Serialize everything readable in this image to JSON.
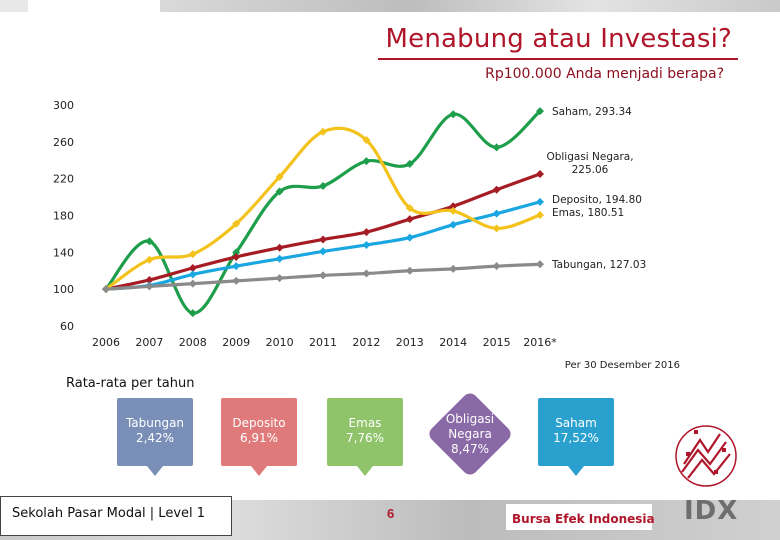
{
  "header": {
    "title": "Menabung atau Investasi?",
    "subtitle": "Rp100.000 Anda menjadi berapa?"
  },
  "footnote": "Per 30 Desember 2016",
  "averages": {
    "title": "Rata-rata per tahun",
    "items": [
      {
        "name": "Tabungan",
        "value": "2,42%",
        "color": "#7a8fb8",
        "shape": "rect"
      },
      {
        "name": "Deposito",
        "value": "6,91%",
        "color": "#e07a7a",
        "shape": "rect"
      },
      {
        "name": "Emas",
        "value": "7,76%",
        "color": "#8fc46b",
        "shape": "rect"
      },
      {
        "name": "Obligasi Negara",
        "value": "8,47%",
        "color": "#8a6aa6",
        "shape": "diamond"
      },
      {
        "name": "Saham",
        "value": "17,52%",
        "color": "#2aa0cf",
        "shape": "rect"
      }
    ]
  },
  "footer": {
    "left": "Sekolah Pasar Modal | Level 1",
    "page": "6",
    "brand": "Bursa Efek Indonesia",
    "logo_text": "IDX"
  },
  "chart_data": {
    "type": "line",
    "title": "",
    "xlabel": "",
    "ylabel": "",
    "categories": [
      "2006",
      "2007",
      "2008",
      "2009",
      "2010",
      "2011",
      "2012",
      "2013",
      "2014",
      "2015",
      "2016*"
    ],
    "ylim": [
      60,
      300
    ],
    "yticks": [
      "300",
      "260",
      "220",
      "180",
      "140",
      "100",
      "60"
    ],
    "ytick_values": [
      300,
      260,
      220,
      180,
      140,
      100,
      60
    ],
    "grid": false,
    "series": [
      {
        "name": "Saham",
        "label": "Saham, 293.34",
        "color": "#1e9e4a",
        "values": [
          100,
          152,
          74,
          140,
          206,
          212,
          239,
          236,
          290,
          254,
          293.34
        ]
      },
      {
        "name": "Obligasi Negara",
        "label": "Obligasi Negara, 225.06",
        "color": "#a51c24",
        "values": [
          100,
          110,
          123,
          135,
          145,
          154,
          162,
          176,
          190,
          208,
          225.06
        ]
      },
      {
        "name": "Deposito",
        "label": "Deposito, 194.80",
        "color": "#1aa6e0",
        "values": [
          100,
          104,
          116,
          125,
          133,
          141,
          148,
          156,
          170,
          182,
          194.8
        ]
      },
      {
        "name": "Emas",
        "label": "Emas, 180.51",
        "color": "#f4c21c",
        "values": [
          100,
          132,
          138,
          171,
          222,
          271,
          262,
          188,
          185,
          166,
          180.51
        ]
      },
      {
        "name": "Tabungan",
        "label": "Tabungan, 127.03",
        "color": "#8a8a8a",
        "values": [
          100,
          103,
          106,
          109,
          112,
          115,
          117,
          120,
          122,
          125,
          127.03
        ]
      }
    ]
  }
}
